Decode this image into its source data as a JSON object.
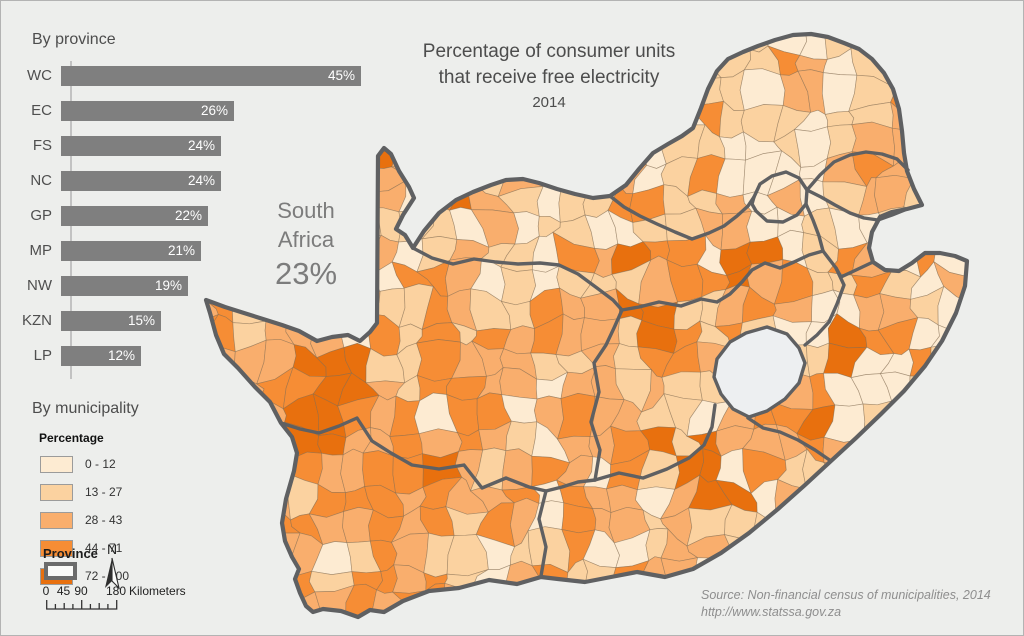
{
  "map_title": {
    "text": "Percentage of consumer units that receive free electricity",
    "year": "2014"
  },
  "bar_chart": {
    "title": "By province",
    "categories": [
      "WC",
      "EC",
      "FS",
      "NC",
      "GP",
      "MP",
      "NW",
      "KZN",
      "LP"
    ],
    "values": [
      45,
      26,
      24,
      24,
      22,
      21,
      19,
      15,
      12
    ],
    "unit": "%",
    "bar_color": "#7f7f7f"
  },
  "national_summary": {
    "line1": "South",
    "line2": "Africa",
    "value": "23%"
  },
  "municipality_legend": {
    "title": "By municipality",
    "heading": "Percentage",
    "classes": [
      {
        "label": "0 - 12",
        "color": "#fdebd2"
      },
      {
        "label": "13 - 27",
        "color": "#fbd2a0"
      },
      {
        "label": "28 - 43",
        "color": "#f9ae6d"
      },
      {
        "label": "44 - 71",
        "color": "#f68d35"
      },
      {
        "label": "72 - 100",
        "color": "#e8700e"
      }
    ],
    "province_label": "Province"
  },
  "north_arrow": {
    "label": "N"
  },
  "scale_bar": {
    "tick_labels": [
      "0",
      "45",
      "90",
      "180"
    ],
    "unit": "Kilometers",
    "max_km": 180
  },
  "source": {
    "line1": "Source: Non-financial census of municipalities, 2014",
    "line2": "http://www.statssa.gov.za"
  },
  "map_style": {
    "province_border_color": "#5f6062",
    "municipal_border_color": "rgba(130,108,82,0.55)",
    "lesotho_fill": "#edeff1",
    "sea_color": "#edeeec"
  },
  "chart_data": [
    {
      "type": "bar",
      "title": "By province",
      "orientation": "horizontal",
      "categories": [
        "WC",
        "EC",
        "FS",
        "NC",
        "GP",
        "MP",
        "NW",
        "KZN",
        "LP"
      ],
      "values": [
        45,
        26,
        24,
        24,
        22,
        21,
        19,
        15,
        12
      ],
      "unit": "percent",
      "xlim": [
        0,
        48
      ],
      "annotation": "South Africa 23%"
    },
    {
      "type": "heatmap",
      "subtype": "choropleth-map",
      "title": "Percentage of consumer units that receive free electricity, 2014",
      "region": "South Africa, by municipality",
      "class_breaks": [
        "0 - 12",
        "13 - 27",
        "28 - 43",
        "44 - 71",
        "72 - 100"
      ],
      "class_colors": [
        "#fdebd2",
        "#fbd2a0",
        "#f9ae6d",
        "#f68d35",
        "#e8700e"
      ],
      "national_value_percent": 23,
      "legend_position": "lower-left",
      "source": "Non-financial census of municipalities, 2014 (http://www.statssa.gov.za)"
    }
  ]
}
